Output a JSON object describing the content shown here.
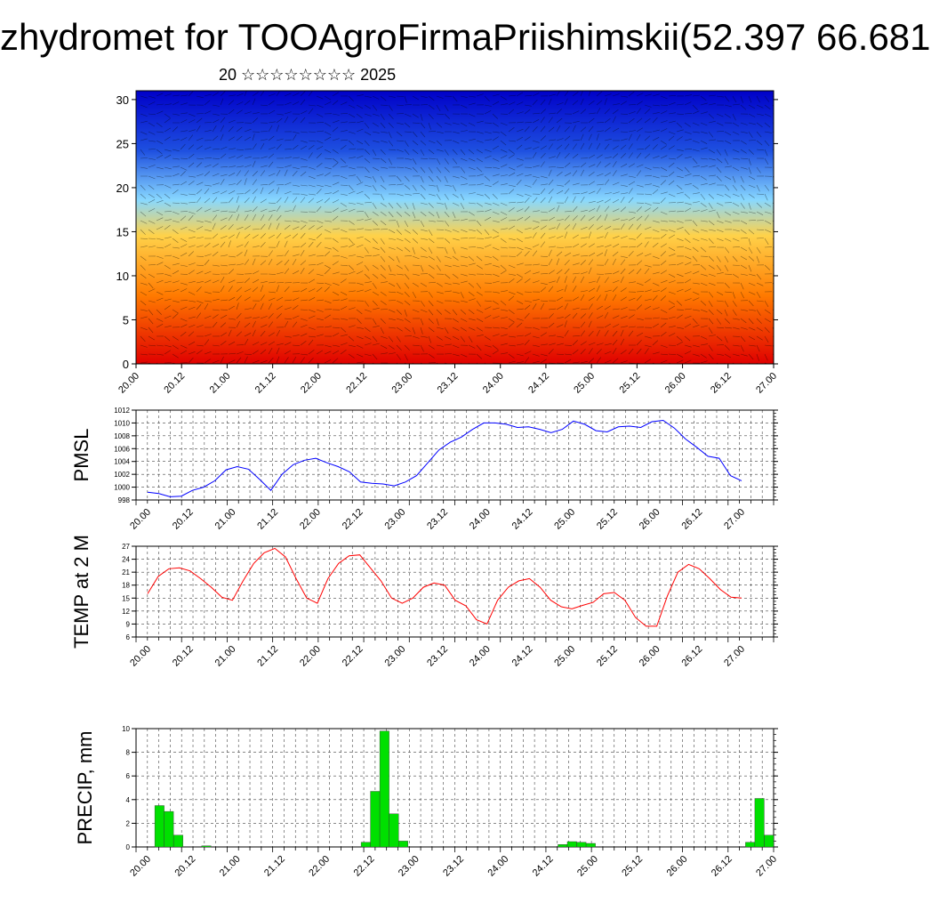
{
  "title": "zhydromet for TOOAgroFirmaPriishimskii(52.397 66.681",
  "subtitle": "20 ☆☆☆☆☆☆☆☆ 2025",
  "chart_data": [
    {
      "type": "heatmap",
      "panel": "cross-section",
      "title": "",
      "xlabel": "",
      "ylabel": "",
      "x_tick_labels": [
        "20.00",
        "20.12",
        "21.00",
        "21.12",
        "22.00",
        "22.12",
        "23.00",
        "23.12",
        "24.00",
        "24.12",
        "25.00",
        "25.12",
        "26.00",
        "26.12",
        "27.00"
      ],
      "y_ticks": [
        0,
        5,
        10,
        15,
        20,
        25,
        30
      ],
      "ylim": [
        0,
        31
      ],
      "colors": [
        "#e00000",
        "#ff7a00",
        "#ffd24a",
        "#88d8ff",
        "#1e50e0",
        "#0000c8"
      ],
      "grid": false
    },
    {
      "type": "line",
      "panel": "pmsl",
      "title": "",
      "ylabel": "PMSL",
      "x_tick_labels": [
        "20.00",
        "20.12",
        "21.00",
        "21.12",
        "22.00",
        "22.12",
        "23.00",
        "23.12",
        "24.00",
        "24.12",
        "25.00",
        "25.12",
        "26.00",
        "26.12",
        "27.00"
      ],
      "y_ticks": [
        998,
        1000,
        1002,
        1004,
        1006,
        1008,
        1010,
        1012
      ],
      "ylim": [
        998,
        1012
      ],
      "color": "#0000ff",
      "grid": true,
      "values": [
        999.2,
        999.0,
        998.5,
        998.6,
        999.5,
        1000.0,
        1001.0,
        1002.7,
        1003.2,
        1002.8,
        1001.2,
        999.5,
        1002.0,
        1003.5,
        1004.2,
        1004.5,
        1003.8,
        1003.2,
        1002.4,
        1000.8,
        1000.6,
        1000.5,
        1000.2,
        1000.8,
        1001.8,
        1003.8,
        1005.8,
        1007.0,
        1007.8,
        1009.0,
        1010.0,
        1010.0,
        1009.8,
        1009.3,
        1009.4,
        1009.0,
        1008.5,
        1009.0,
        1010.3,
        1009.8,
        1008.8,
        1008.6,
        1009.4,
        1009.5,
        1009.3,
        1010.2,
        1010.4,
        1009.2,
        1007.5,
        1006.2,
        1004.8,
        1004.5,
        1001.8,
        1001.0
      ]
    },
    {
      "type": "line",
      "panel": "temp",
      "title": "",
      "ylabel": "TEMP at 2 M",
      "x_tick_labels": [
        "20.00",
        "20.12",
        "21.00",
        "21.12",
        "22.00",
        "22.12",
        "23.00",
        "23.12",
        "24.00",
        "24.12",
        "25.00",
        "25.12",
        "26.00",
        "26.12",
        "27.00"
      ],
      "y_ticks": [
        6,
        9,
        12,
        15,
        18,
        21,
        24,
        27
      ],
      "ylim": [
        6,
        27
      ],
      "color": "#ff0000",
      "grid": true,
      "values": [
        16.0,
        20.0,
        21.8,
        22.0,
        21.3,
        19.5,
        17.5,
        15.2,
        14.5,
        19.0,
        23.0,
        25.5,
        26.5,
        24.5,
        19.5,
        15.0,
        13.8,
        19.5,
        23.0,
        24.8,
        25.0,
        22.0,
        19.0,
        15.0,
        13.8,
        15.0,
        17.5,
        18.5,
        18.0,
        14.5,
        13.2,
        10.0,
        9.0,
        14.5,
        17.5,
        19.0,
        19.5,
        17.5,
        14.5,
        13.0,
        12.5,
        13.3,
        14.0,
        16.0,
        16.3,
        14.5,
        10.5,
        8.5,
        8.5,
        15.5,
        21.0,
        22.8,
        21.8,
        19.5,
        17.0,
        15.2,
        15.0
      ]
    },
    {
      "type": "bar",
      "panel": "precip",
      "title": "",
      "ylabel": "PRECIP, mm",
      "x_tick_labels": [
        "20.00",
        "20.12",
        "21.00",
        "21.12",
        "22.00",
        "22.12",
        "23.00",
        "23.12",
        "24.00",
        "24.12",
        "25.00",
        "25.12",
        "26.00",
        "26.12",
        "27.00"
      ],
      "y_ticks": [
        0,
        2,
        4,
        6,
        8,
        10
      ],
      "ylim": [
        0,
        10
      ],
      "color": "#00e000",
      "grid": true,
      "values": [
        0,
        0,
        3.5,
        3.0,
        1.0,
        0,
        0,
        0.1,
        0,
        0,
        0,
        0,
        0,
        0,
        0,
        0,
        0,
        0,
        0,
        0,
        0,
        0,
        0,
        0,
        0.4,
        4.7,
        9.8,
        2.8,
        0.5,
        0,
        0,
        0,
        0,
        0,
        0,
        0,
        0,
        0,
        0,
        0,
        0,
        0,
        0,
        0,
        0,
        0.2,
        0.45,
        0.4,
        0.3,
        0,
        0,
        0,
        0,
        0,
        0,
        0,
        0,
        0,
        0,
        0,
        0,
        0,
        0,
        0,
        0,
        0.4,
        4.1,
        1.0
      ]
    }
  ]
}
